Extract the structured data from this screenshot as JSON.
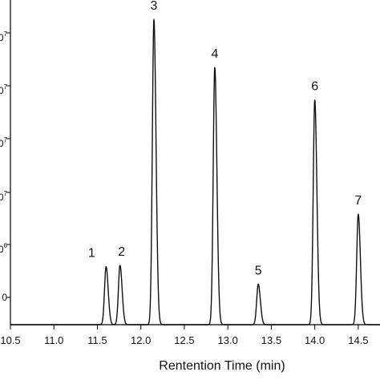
{
  "chart_data": {
    "type": "line",
    "xlabel": "Rentention Time (min)",
    "xlim": [
      10.5,
      14.75
    ],
    "ylim": [
      0,
      5.2
    ],
    "x_ticks": [
      "10.5",
      "11.0",
      "11.5",
      "12.0",
      "12.5",
      "13.0",
      "13.5",
      "14.0",
      "14.5"
    ],
    "y_tick_labels": [
      {
        "text": "0",
        "sup": ""
      },
      {
        "text": "0",
        "sup": "6"
      },
      {
        "text": "0",
        "sup": "7"
      },
      {
        "text": "0",
        "sup": "7"
      },
      {
        "text": "0",
        "sup": "7"
      },
      {
        "text": "0",
        "sup": "7"
      }
    ],
    "peaks": [
      {
        "label": "1",
        "rt": 11.6,
        "height": 0.93
      },
      {
        "label": "2",
        "rt": 11.76,
        "height": 0.95
      },
      {
        "label": "3",
        "rt": 12.15,
        "height": 4.89
      },
      {
        "label": "4",
        "rt": 12.85,
        "height": 4.12
      },
      {
        "label": "5",
        "rt": 13.35,
        "height": 0.65
      },
      {
        "label": "6",
        "rt": 14.0,
        "height": 3.6
      },
      {
        "label": "7",
        "rt": 14.5,
        "height": 1.77
      }
    ]
  }
}
